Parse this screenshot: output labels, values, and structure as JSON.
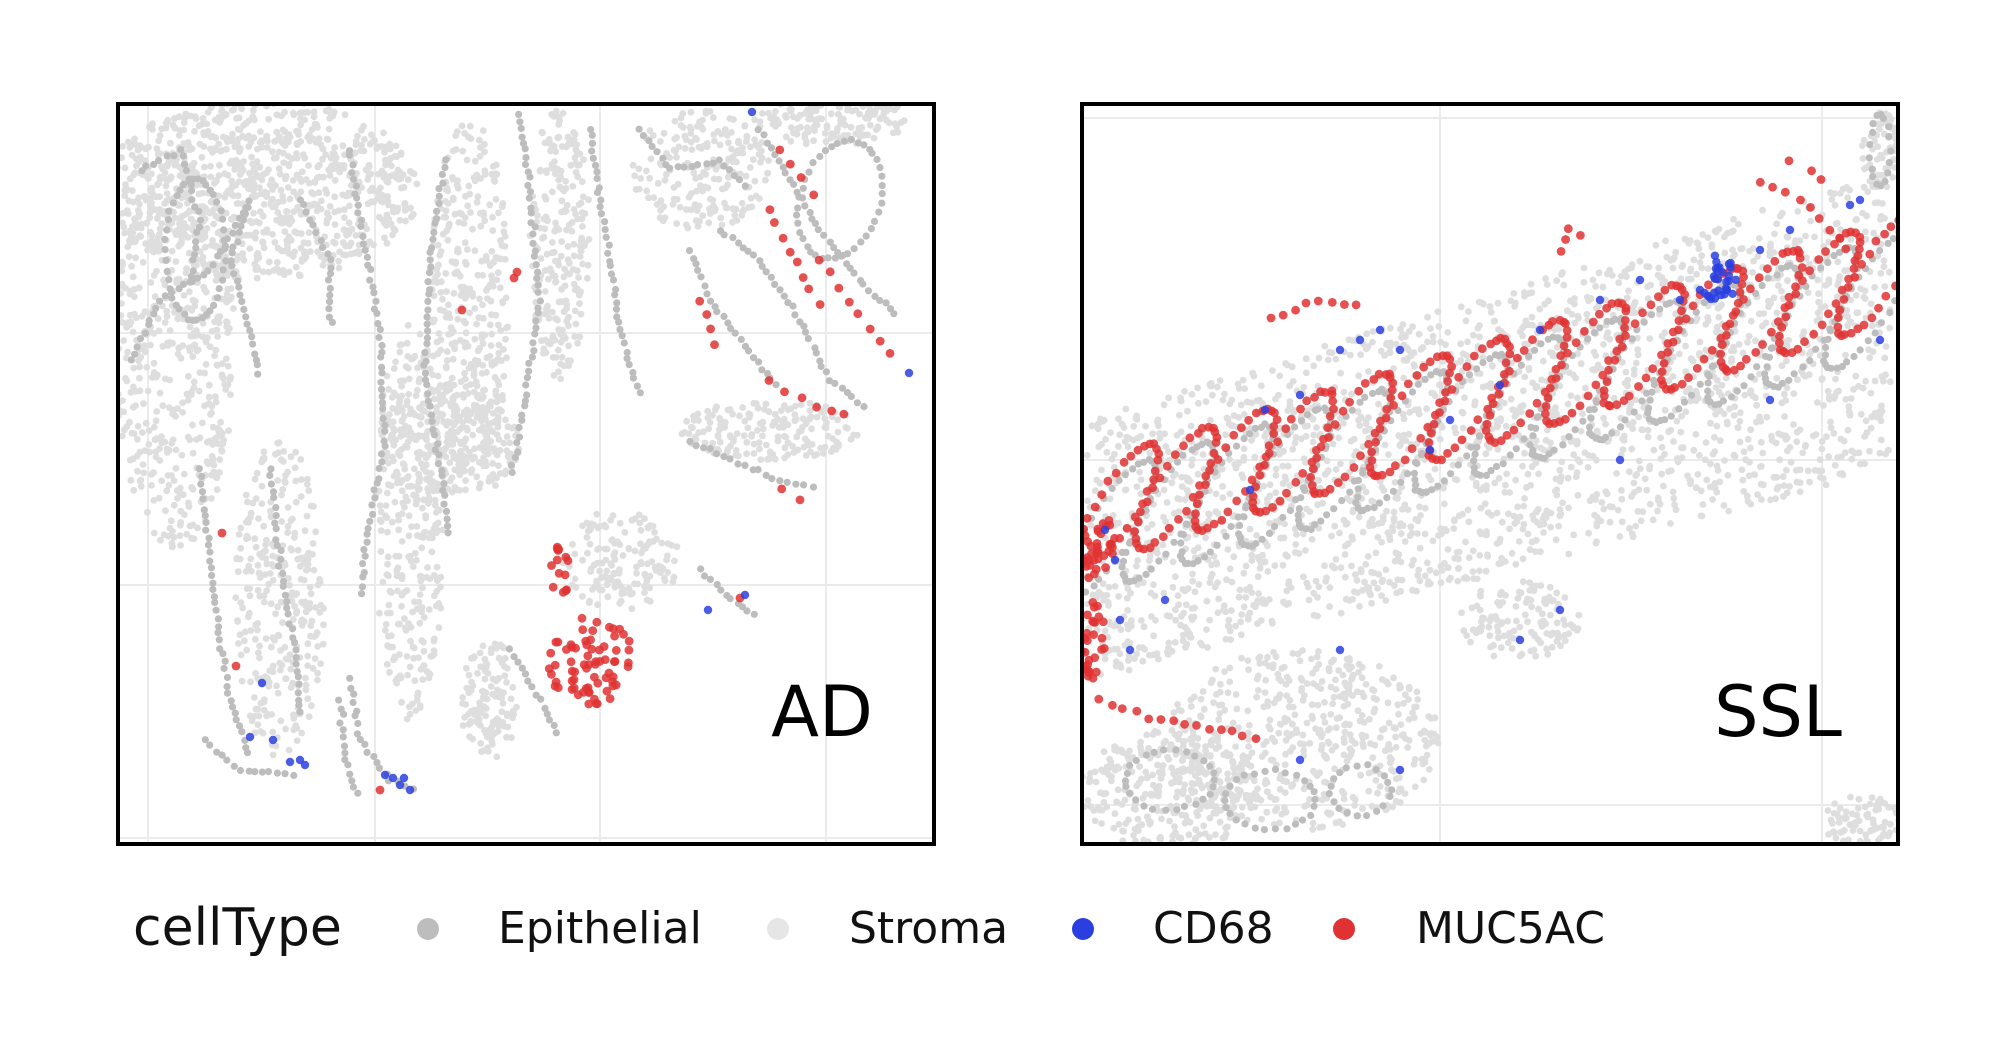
{
  "chart_data": [
    {
      "type": "scatter",
      "panel_label": "AD",
      "grid": true,
      "series": [
        {
          "name": "Epithelial",
          "color": "#bdbdbd"
        },
        {
          "name": "Stroma",
          "color": "#dedede"
        },
        {
          "name": "CD68",
          "color": "#2b3fe0"
        },
        {
          "name": "MUC5AC",
          "color": "#e03232"
        }
      ]
    },
    {
      "type": "scatter",
      "panel_label": "SSL",
      "grid": true,
      "series": [
        {
          "name": "Epithelial",
          "color": "#bdbdbd"
        },
        {
          "name": "Stroma",
          "color": "#dedede"
        },
        {
          "name": "CD68",
          "color": "#2b3fe0"
        },
        {
          "name": "MUC5AC",
          "color": "#e03232"
        }
      ]
    }
  ],
  "legend": {
    "title": "cellType",
    "placement": "bottom",
    "items": [
      {
        "label": "Epithelial",
        "color": "#bdbdbd"
      },
      {
        "label": "Stroma",
        "color": "#e6e6e6"
      },
      {
        "label": "CD68",
        "color": "#2b3fe0"
      },
      {
        "label": "MUC5AC",
        "color": "#e03232"
      }
    ]
  }
}
